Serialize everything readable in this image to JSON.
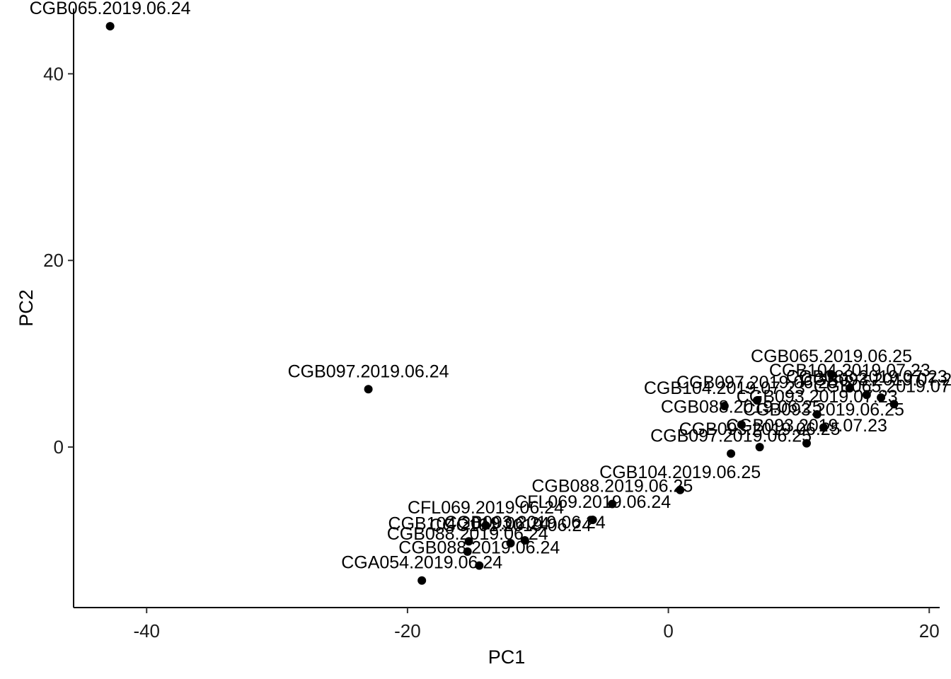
{
  "chart_data": {
    "type": "scatter",
    "title": "",
    "xlabel": "PC1",
    "ylabel": "PC2",
    "xlim": [
      -45.6,
      20.8
    ],
    "ylim": [
      -17.2,
      47.0
    ],
    "x_ticks": [
      -40,
      -20,
      0,
      20
    ],
    "y_ticks": [
      0,
      20,
      40
    ],
    "x_tick_labels": [
      "-40",
      "-20",
      "0",
      "20"
    ],
    "y_tick_labels": [
      "0",
      "20",
      "40"
    ],
    "grid": false,
    "legend": "none",
    "colors": {
      "point": "#000000",
      "axis": "#000000",
      "text": "#000000"
    },
    "points": [
      {
        "label": "CGB065.2019.06.24",
        "x": -42.8,
        "y": 45.1
      },
      {
        "label": "CGB097.2019.06.24",
        "x": -23.0,
        "y": 6.2
      },
      {
        "label": "CGB065.2019.06.25",
        "x": 12.5,
        "y": 7.8
      },
      {
        "label": "CGB097.2019.06.25",
        "x": 6.8,
        "y": 5.0
      },
      {
        "label": "CGB104.2019.07.23",
        "x": 13.9,
        "y": 6.3
      },
      {
        "label": "CGB088.2019.07.23",
        "x": 15.2,
        "y": 5.6
      },
      {
        "label": "CGB093.2019.07.23",
        "x": 16.3,
        "y": 5.3
      },
      {
        "label": "CGB065.2019.07.23",
        "x": 17.3,
        "y": 4.6
      },
      {
        "label": "CGB104.2019.07.23",
        "x": 4.3,
        "y": 4.4
      },
      {
        "label": "CGB093.2019.07.23",
        "x": 11.4,
        "y": 3.5
      },
      {
        "label": "CGB088.2019.06.25",
        "x": 5.6,
        "y": 2.4
      },
      {
        "label": "CGB093.2019.06.25",
        "x": 11.9,
        "y": 2.1
      },
      {
        "label": "CGB097.2019.06.25",
        "x": 4.8,
        "y": -0.7
      },
      {
        "label": "CGB093.2019.06.25",
        "x": 7.0,
        "y": 0.0
      },
      {
        "label": "CGB093.2019.07.23",
        "x": 10.6,
        "y": 0.4
      },
      {
        "label": "CGB104.2019.06.25",
        "x": 0.9,
        "y": -4.6
      },
      {
        "label": "CGB088.2019.06.25",
        "x": -4.3,
        "y": -6.1
      },
      {
        "label": "CFL069.2019.06.24",
        "x": -5.8,
        "y": -7.8
      },
      {
        "label": "CGB093.2019.06.24",
        "x": -11.0,
        "y": -10.0
      },
      {
        "label": "CFL069.2019.06.24",
        "x": -14.0,
        "y": -8.4
      },
      {
        "label": "CGB104.2019.06.24",
        "x": -15.3,
        "y": -10.1
      },
      {
        "label": "CGC101.2019.06.24",
        "x": -12.1,
        "y": -10.3
      },
      {
        "label": "CGB088.2019.06.24",
        "x": -15.4,
        "y": -11.2
      },
      {
        "label": "CGB088.2019.06.24",
        "x": -14.5,
        "y": -12.7
      },
      {
        "label": "CGA054.2019.06.24",
        "x": -18.9,
        "y": -14.3
      }
    ]
  }
}
